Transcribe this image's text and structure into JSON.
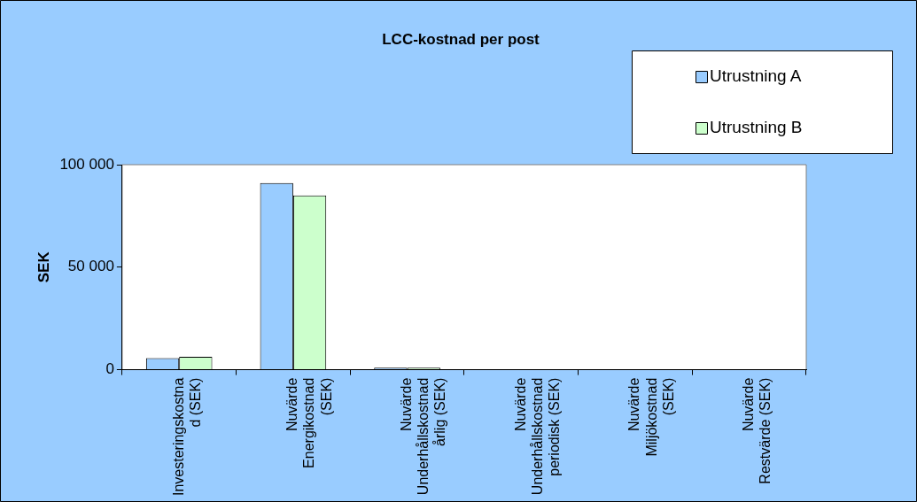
{
  "chart_data": {
    "type": "bar",
    "title": "LCC-kostnad per post",
    "ylabel": "SEK",
    "categories": [
      "Investeringskostnad (SEK)",
      "Nuvärde Energikostnad (SEK)",
      "Nuvärde Underhållskostnad årlig (SEK)",
      "Nuvärde Underhållskostnad periodisk (SEK)",
      "Nuvärde Miljökostnad (SEK)",
      "Nuvärde Restvärde (SEK)"
    ],
    "series": [
      {
        "name": "Utrustning A",
        "color": "#99ccff",
        "values": [
          5700,
          91000,
          1000,
          0,
          0,
          0
        ]
      },
      {
        "name": "Utrustning B",
        "color": "#ccffcc",
        "values": [
          6300,
          85000,
          1000,
          0,
          0,
          0
        ]
      }
    ],
    "ylim": [
      0,
      100000
    ],
    "yticks": [
      0,
      50000,
      100000
    ],
    "grid": false,
    "legend": "top right"
  }
}
